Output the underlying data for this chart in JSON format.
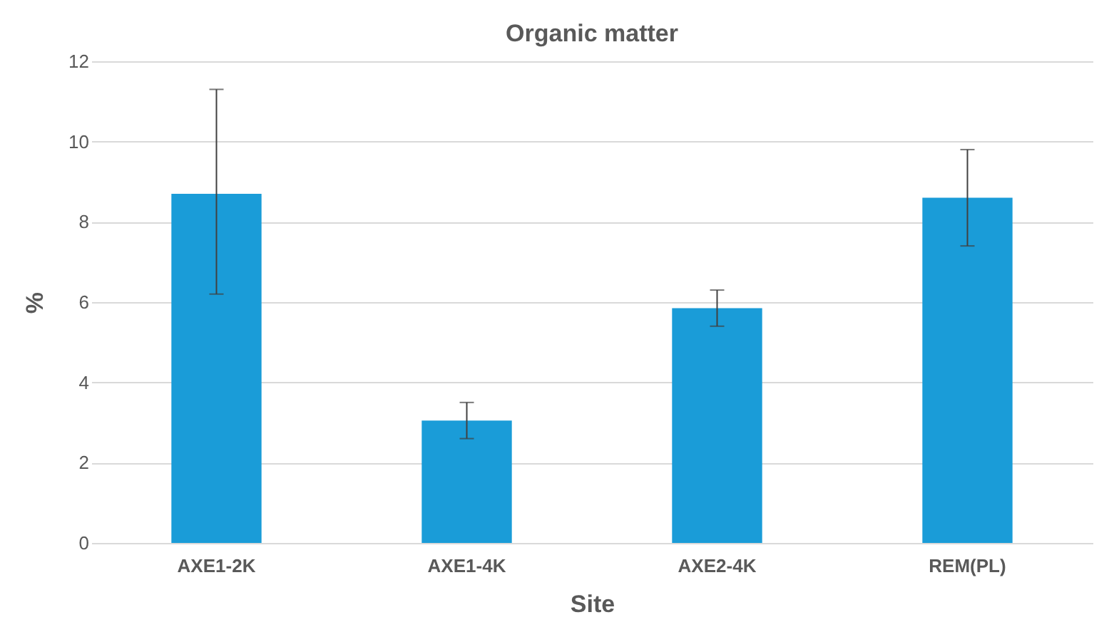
{
  "chart_data": {
    "type": "bar",
    "title": "Organic matter",
    "xlabel": "Site",
    "ylabel": "%",
    "categories": [
      "AXE1-2K",
      "AXE1-4K",
      "AXE2-4K",
      "REM(PL)"
    ],
    "values": [
      8.7,
      3.05,
      5.85,
      8.6
    ],
    "errors": [
      [
        6.2,
        11.3
      ],
      [
        2.6,
        3.5
      ],
      [
        5.4,
        6.3
      ],
      [
        7.4,
        9.8
      ]
    ],
    "color": "#1a9cd8",
    "ylim": [
      0,
      12
    ],
    "yticks": [
      0,
      2,
      4,
      6,
      8,
      10,
      12
    ],
    "grid": "y"
  }
}
